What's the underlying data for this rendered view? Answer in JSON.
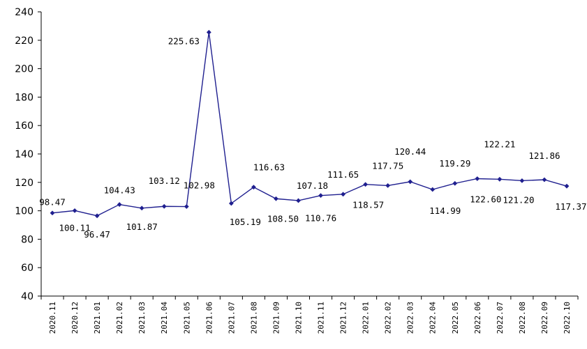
{
  "chart_data": {
    "type": "line",
    "title": "",
    "xlabel": "",
    "ylabel": "",
    "ylim": [
      40,
      240
    ],
    "yticks": [
      40,
      60,
      80,
      100,
      120,
      140,
      160,
      180,
      200,
      220,
      240
    ],
    "grid": false,
    "legend": "none",
    "categories": [
      "2020.11",
      "2020.12",
      "2021.01",
      "2021.02",
      "2021.03",
      "2021.04",
      "2021.05",
      "2021.06",
      "2021.07",
      "2021.08",
      "2021.09",
      "2021.10",
      "2021.11",
      "2021.12",
      "2022.01",
      "2022.02",
      "2022.03",
      "2022.04",
      "2022.05",
      "2022.06",
      "2022.07",
      "2022.08",
      "2022.09",
      "2022.10"
    ],
    "series": [
      {
        "values": [
          98.47,
          100.11,
          96.47,
          104.43,
          101.87,
          103.12,
          102.98,
          225.63,
          105.19,
          116.63,
          108.5,
          107.18,
          110.76,
          111.65,
          118.57,
          117.75,
          120.44,
          114.99,
          119.29,
          122.6,
          122.21,
          121.2,
          121.86,
          117.37
        ],
        "labels": [
          "98.47",
          "100.11",
          "96.47",
          "104.43",
          "101.87",
          "103.12",
          "102.98",
          "225.63",
          "105.19",
          "116.63",
          "108.50",
          "107.18",
          "110.76",
          "111.65",
          "118.57",
          "117.75",
          "120.44",
          "114.99",
          "119.29",
          "122.60",
          "122.21",
          "121.20",
          "121.86",
          "117.37"
        ],
        "color": "#1f1f8f"
      }
    ]
  }
}
